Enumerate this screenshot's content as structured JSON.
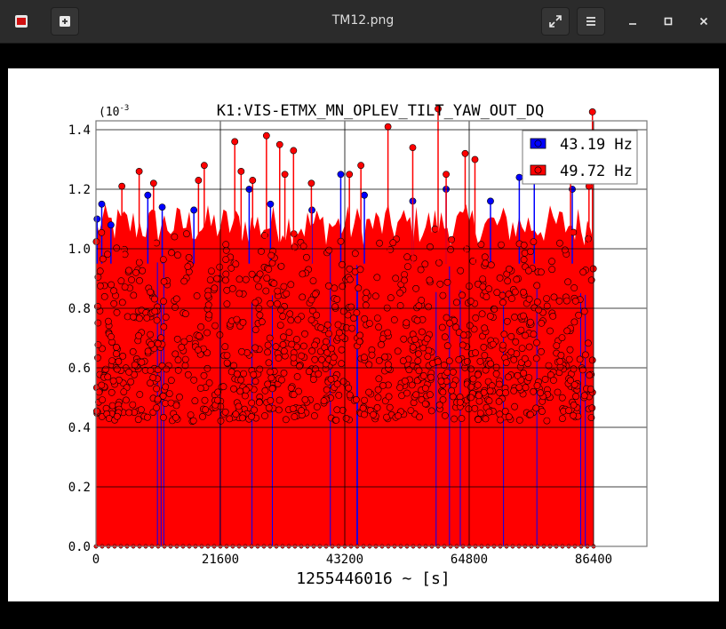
{
  "window": {
    "title": "TM12.png",
    "icon": "image-viewer-icon",
    "controls": [
      "new-window-icon",
      "fullscreen-icon",
      "menu-icon",
      "minimize-icon",
      "maximize-icon",
      "close-icon"
    ]
  },
  "chart_data": {
    "type": "scatter",
    "title": "K1:VIS-ETMX_MN_OPLEV_TILT_YAW_OUT_DQ",
    "xlabel": "1255446016 ~ [s]",
    "ylabel": "",
    "y_scale_label": "(10",
    "y_scale_exponent": "-3",
    "xlim": [
      0,
      86400
    ],
    "ylim": [
      0.0,
      1.5
    ],
    "xticks": [
      "0",
      "21600",
      "43200",
      "64800",
      "86400"
    ],
    "yticks": [
      "0.0",
      "0.2",
      "0.4",
      "0.6",
      "0.8",
      "1.0",
      "1.2",
      "1.4"
    ],
    "grid": true,
    "legend_position": "top-right",
    "series": [
      {
        "name": "43.19 Hz",
        "color": "#0000ff",
        "style": "stem-circles",
        "x": [
          200,
          1000,
          2600,
          9000,
          11500,
          17000,
          26600,
          30300,
          37500,
          42500,
          46600,
          55000,
          60800,
          68500,
          73500,
          76100,
          82700
        ],
        "y": [
          1.1,
          1.15,
          1.08,
          1.18,
          1.14,
          1.13,
          1.2,
          1.15,
          1.13,
          1.25,
          1.18,
          1.16,
          1.2,
          1.16,
          1.24,
          1.33,
          1.2
        ]
      },
      {
        "name": "49.72 Hz",
        "color": "#ff0000",
        "style": "stem-circles",
        "x": [
          4500,
          7500,
          10000,
          17800,
          18800,
          24100,
          25200,
          27200,
          29600,
          31900,
          32800,
          34300,
          37400,
          44000,
          46000,
          50700,
          55000,
          59400,
          60800,
          64100,
          65800,
          82400,
          85600,
          86200
        ],
        "y": [
          1.21,
          1.26,
          1.22,
          1.23,
          1.28,
          1.36,
          1.26,
          1.23,
          1.38,
          1.35,
          1.25,
          1.33,
          1.22,
          1.25,
          1.28,
          1.41,
          1.34,
          1.47,
          1.25,
          1.32,
          1.3,
          1.26,
          1.21,
          1.46
        ]
      }
    ],
    "band_y_range": [
      0.42,
      1.07
    ]
  }
}
